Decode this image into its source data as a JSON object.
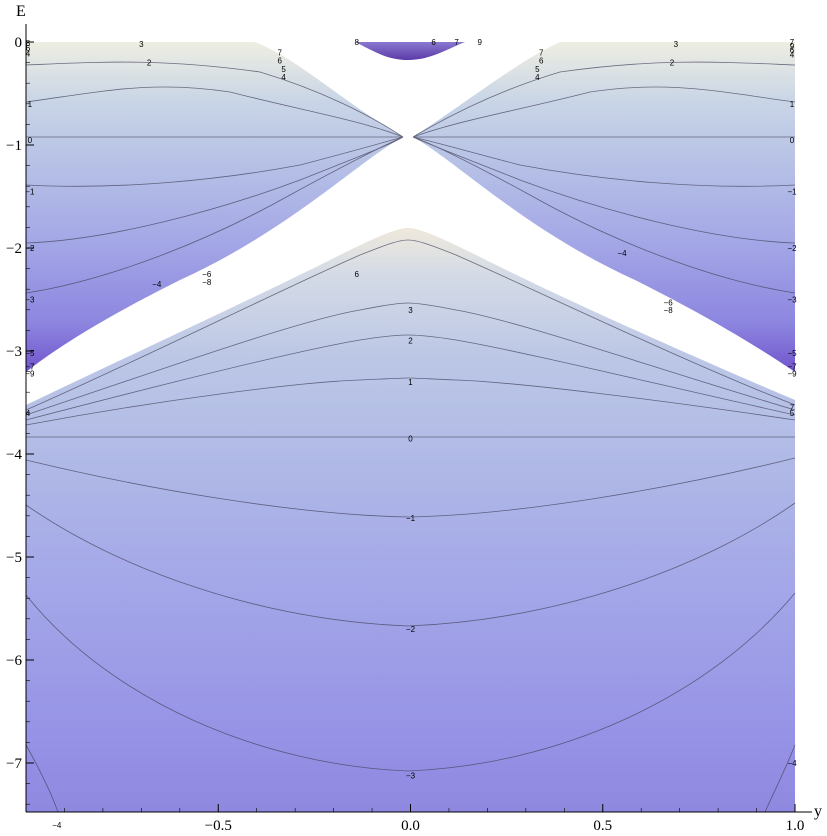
{
  "chart_data": {
    "type": "contour",
    "xlabel": "y",
    "ylabel": "E",
    "xlim": [
      -1.0,
      1.0
    ],
    "ylim": [
      -7.65,
      0.05
    ],
    "x_ticks": [
      {
        "value": -0.5,
        "label": "−0.5"
      },
      {
        "value": 0.0,
        "label": "0.0"
      },
      {
        "value": 0.5,
        "label": "0.5"
      },
      {
        "value": 1.0,
        "label": "1.0"
      }
    ],
    "y_ticks": [
      {
        "value": 0,
        "label": "0"
      },
      {
        "value": -1,
        "label": "−1"
      },
      {
        "value": -2,
        "label": "−2"
      },
      {
        "value": -3,
        "label": "−3"
      },
      {
        "value": -4,
        "label": "−4"
      },
      {
        "value": -5,
        "label": "−5"
      },
      {
        "value": -6,
        "label": "−6"
      },
      {
        "value": -7,
        "label": "−7"
      }
    ],
    "colors": {
      "low": "#6a4fc2",
      "mid": "#b9c6e8",
      "high": "#efe9dc",
      "line": "#44445e"
    },
    "contour_labels": [
      {
        "x": -0.7,
        "y": -0.02,
        "text": "3"
      },
      {
        "x": -0.68,
        "y": -0.2,
        "text": "2"
      },
      {
        "x": -0.99,
        "y": -0.6,
        "text": "1"
      },
      {
        "x": -0.99,
        "y": -0.95,
        "text": "0"
      },
      {
        "x": -0.99,
        "y": -1.45,
        "text": "−1"
      },
      {
        "x": -0.99,
        "y": -2.0,
        "text": "−2"
      },
      {
        "x": -0.99,
        "y": -2.5,
        "text": "−3"
      },
      {
        "x": -0.66,
        "y": -2.35,
        "text": "−4"
      },
      {
        "x": -0.53,
        "y": -2.25,
        "text": "−6"
      },
      {
        "x": -0.53,
        "y": -2.33,
        "text": "−8"
      },
      {
        "x": -0.99,
        "y": -3.02,
        "text": "−5"
      },
      {
        "x": -0.99,
        "y": -3.15,
        "text": "−7"
      },
      {
        "x": -0.99,
        "y": -3.22,
        "text": "−9"
      },
      {
        "x": -1.0,
        "y": -3.6,
        "text": "4"
      },
      {
        "x": -0.34,
        "y": -0.1,
        "text": "7"
      },
      {
        "x": -0.34,
        "y": -0.18,
        "text": "6"
      },
      {
        "x": -0.33,
        "y": -0.26,
        "text": "5"
      },
      {
        "x": -0.33,
        "y": -0.34,
        "text": "4"
      },
      {
        "x": -0.14,
        "y": -2.25,
        "text": "6"
      },
      {
        "x": 0.0,
        "y": -2.6,
        "text": "3"
      },
      {
        "x": 0.0,
        "y": -2.9,
        "text": "2"
      },
      {
        "x": 0.0,
        "y": -3.3,
        "text": "1"
      },
      {
        "x": 0.0,
        "y": -3.85,
        "text": "0"
      },
      {
        "x": 0.0,
        "y": -4.62,
        "text": "−1"
      },
      {
        "x": 0.0,
        "y": -5.7,
        "text": "−2"
      },
      {
        "x": 0.0,
        "y": -7.12,
        "text": "−3"
      },
      {
        "x": -0.14,
        "y": 0.0,
        "text": "8"
      },
      {
        "x": 0.06,
        "y": 0.0,
        "text": "6"
      },
      {
        "x": 0.12,
        "y": 0.0,
        "text": "7"
      },
      {
        "x": 0.18,
        "y": 0.0,
        "text": "9"
      },
      {
        "x": 0.69,
        "y": -0.02,
        "text": "3"
      },
      {
        "x": 0.68,
        "y": -0.2,
        "text": "2"
      },
      {
        "x": 1.0,
        "y": -0.6,
        "text": "1"
      },
      {
        "x": 1.0,
        "y": -0.95,
        "text": "0"
      },
      {
        "x": 1.0,
        "y": -1.45,
        "text": "−1"
      },
      {
        "x": 1.0,
        "y": -2.0,
        "text": "−2"
      },
      {
        "x": 1.0,
        "y": -2.5,
        "text": "−3"
      },
      {
        "x": 0.55,
        "y": -2.05,
        "text": "−4"
      },
      {
        "x": 0.67,
        "y": -2.53,
        "text": "−6"
      },
      {
        "x": 0.67,
        "y": -2.6,
        "text": "−8"
      },
      {
        "x": 1.0,
        "y": -3.02,
        "text": "−5"
      },
      {
        "x": 1.0,
        "y": -3.15,
        "text": "−7"
      },
      {
        "x": 1.0,
        "y": -3.22,
        "text": "−9"
      },
      {
        "x": 1.0,
        "y": -3.55,
        "text": "7"
      },
      {
        "x": 1.0,
        "y": -3.6,
        "text": "5"
      },
      {
        "x": 0.34,
        "y": -0.1,
        "text": "7"
      },
      {
        "x": 0.34,
        "y": -0.18,
        "text": "6"
      },
      {
        "x": 0.33,
        "y": -0.26,
        "text": "5"
      },
      {
        "x": 0.33,
        "y": -0.34,
        "text": "4"
      },
      {
        "x": 1.0,
        "y": 0.0,
        "text": "7"
      },
      {
        "x": 1.0,
        "y": -0.04,
        "text": "9"
      },
      {
        "x": 1.0,
        "y": -0.08,
        "text": "6"
      },
      {
        "x": 1.0,
        "y": -0.12,
        "text": "4"
      },
      {
        "x": -1.0,
        "y": -0.01,
        "text": "8"
      },
      {
        "x": -1.0,
        "y": -0.06,
        "text": "6"
      },
      {
        "x": -1.0,
        "y": -0.11,
        "text": "4"
      },
      {
        "x": 1.0,
        "y": -7.0,
        "text": "−4"
      },
      {
        "x": -0.92,
        "y": -7.6,
        "text": "−4"
      }
    ]
  }
}
